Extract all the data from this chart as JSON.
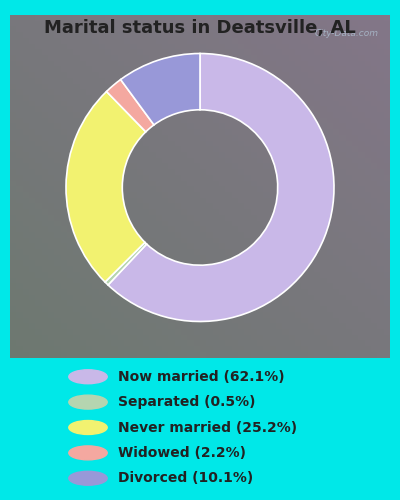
{
  "title": "Marital status in Deatsville, AL",
  "slices": [
    62.1,
    0.5,
    25.2,
    2.2,
    10.1
  ],
  "labels": [
    "Now married (62.1%)",
    "Separated (0.5%)",
    "Never married (25.2%)",
    "Widowed (2.2%)",
    "Divorced (10.1%)"
  ],
  "colors": [
    "#c9b8e8",
    "#b5d5b0",
    "#f2f270",
    "#f4a8a0",
    "#9898d8"
  ],
  "outer_bg": "#00e8e8",
  "chart_bg_lt": "#e8f5e8",
  "chart_bg_rb": "#f0f0f8",
  "title_fontsize": 13,
  "title_color": "#222222",
  "donut_width": 0.42,
  "legend_fontsize": 10,
  "legend_text_color": "#222222",
  "watermark_text": "City-Data.com",
  "watermark_color": "#aabbcc"
}
